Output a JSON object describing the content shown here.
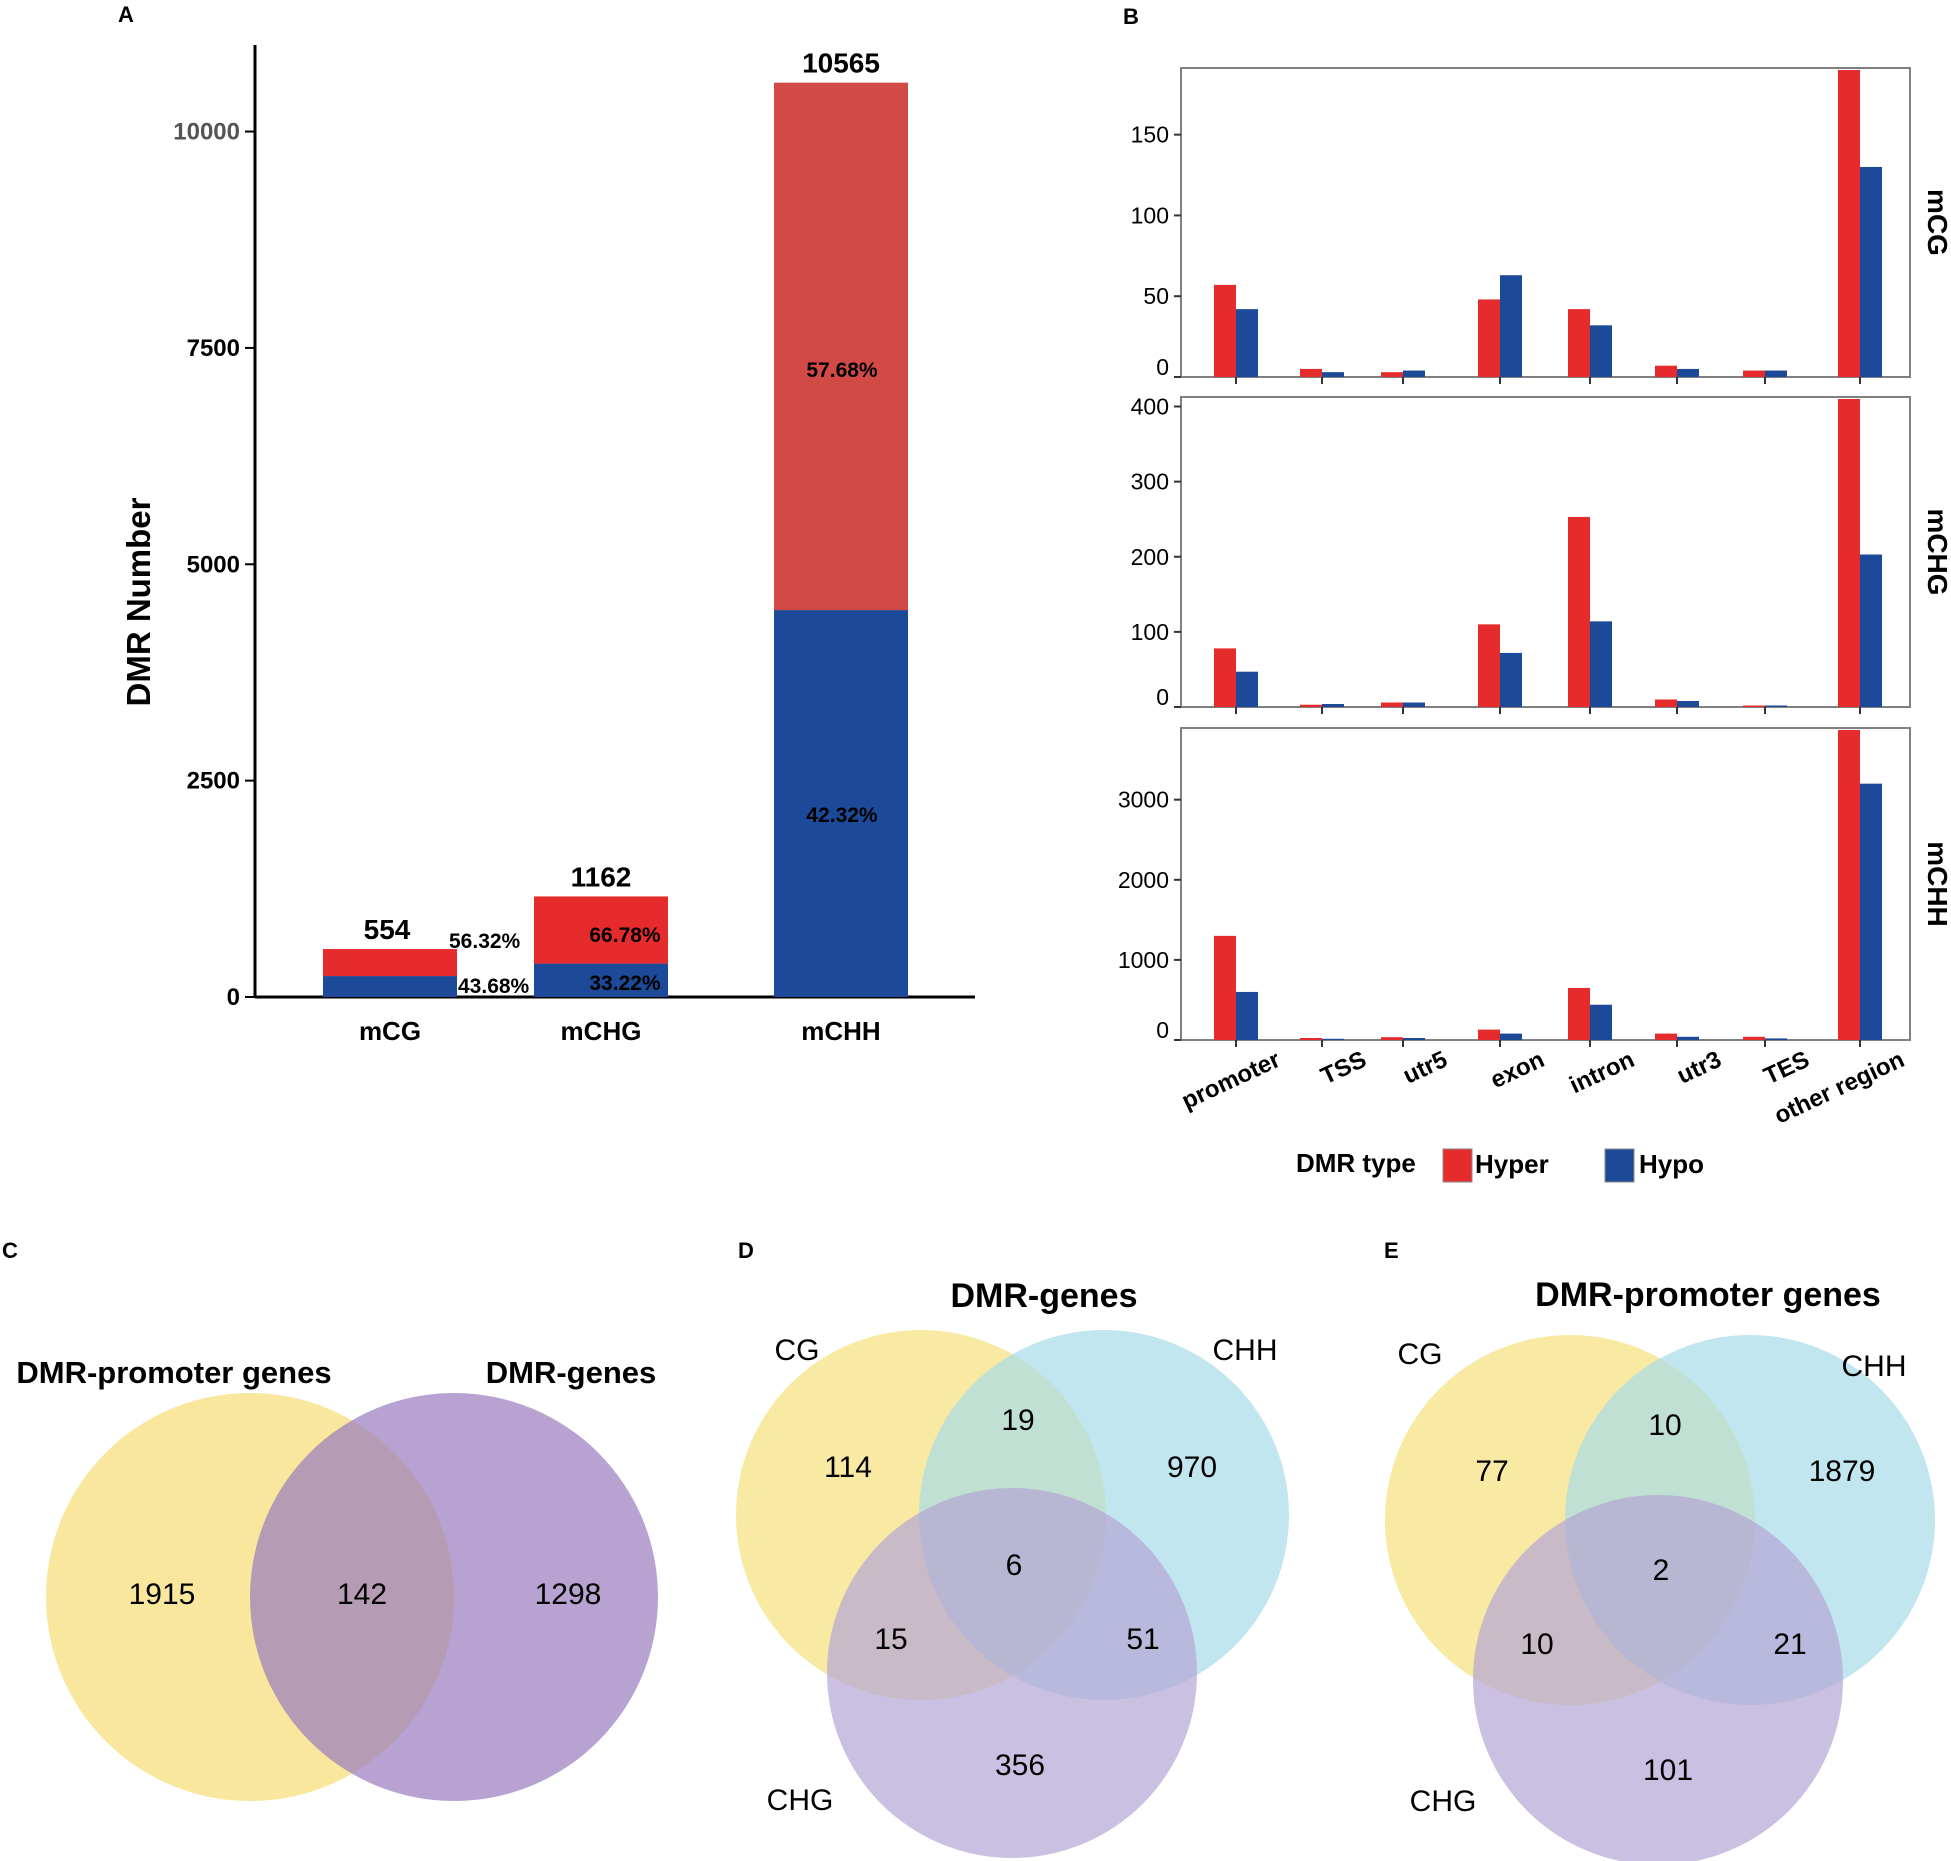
{
  "colors": {
    "hyper": "#e52b2b",
    "hyper_stack": "#d24a46",
    "hypo": "#1c4a99",
    "axis": "#000000",
    "panel_border": "#808080",
    "venn_yellow": "#f5df7c",
    "venn_purple": "#9a7bbd",
    "venn_cyan": "#a8dce8",
    "venn_purple_light": "#b3a5d4"
  },
  "panels": {
    "a": {
      "label": "A"
    },
    "b": {
      "label": "B"
    },
    "c": {
      "label": "C"
    },
    "d": {
      "label": "D"
    },
    "e": {
      "label": "E"
    }
  },
  "chart_data": [
    {
      "id": "A",
      "type": "bar",
      "stacked": true,
      "ylabel": "DMR Number",
      "ylim": [
        0,
        11000
      ],
      "yticks": [
        0,
        2500,
        5000,
        7500,
        10000
      ],
      "ytick_labels": [
        "0",
        "2500",
        "5000",
        "7500",
        "10000"
      ],
      "categories": [
        "mCG",
        "mCHG",
        "mCHH"
      ],
      "totals": [
        554,
        1162,
        10565
      ],
      "total_labels": [
        "554",
        "1162",
        "10565"
      ],
      "series": [
        {
          "name": "Hypo",
          "values": [
            242,
            386,
            4471
          ],
          "pct_labels": [
            "43.68%",
            "33.22%",
            "42.32%"
          ]
        },
        {
          "name": "Hyper",
          "values": [
            312,
            776,
            6094
          ],
          "pct_labels": [
            "56.32%",
            "66.78%",
            "57.68%"
          ]
        }
      ]
    },
    {
      "id": "B",
      "type": "bar",
      "categories": [
        "promoter",
        "TSS",
        "utr5",
        "exon",
        "intron",
        "utr3",
        "TES",
        "other region"
      ],
      "legend": {
        "title": "DMR type",
        "entries": [
          "Hyper",
          "Hypo"
        ],
        "position": "bottom"
      },
      "facets": [
        {
          "name": "mCG",
          "ylim": [
            0,
            190
          ],
          "yticks": [
            0,
            50,
            100,
            150
          ],
          "ytick_labels": [
            "0",
            "50",
            "100",
            "150"
          ],
          "series": [
            {
              "name": "Hyper",
              "values": [
                57,
                5,
                3,
                48,
                42,
                7,
                4,
                190
              ]
            },
            {
              "name": "Hypo",
              "values": [
                42,
                3,
                4,
                63,
                32,
                5,
                4,
                130
              ]
            }
          ]
        },
        {
          "name": "mCHG",
          "ylim": [
            0,
            410
          ],
          "yticks": [
            0,
            100,
            200,
            300,
            400
          ],
          "ytick_labels": [
            "0",
            "100",
            "200",
            "300",
            "400"
          ],
          "series": [
            {
              "name": "Hyper",
              "values": [
                78,
                3,
                6,
                110,
                253,
                10,
                2,
                410
              ]
            },
            {
              "name": "Hypo",
              "values": [
                47,
                4,
                6,
                72,
                114,
                8,
                2,
                203
              ]
            }
          ]
        },
        {
          "name": "mCHH",
          "ylim": [
            0,
            3870
          ],
          "yticks": [
            0,
            1000,
            2000,
            3000
          ],
          "ytick_labels": [
            "0",
            "1000",
            "2000",
            "3000"
          ],
          "series": [
            {
              "name": "Hyper",
              "values": [
                1300,
                25,
                35,
                130,
                650,
                80,
                40,
                3870
              ]
            },
            {
              "name": "Hypo",
              "values": [
                600,
                15,
                25,
                80,
                440,
                40,
                20,
                3200
              ]
            }
          ]
        }
      ]
    },
    {
      "id": "C",
      "type": "venn",
      "sets": [
        "DMR-promoter genes",
        "DMR-genes"
      ],
      "regions": {
        "only_left": 1915,
        "both": 142,
        "only_right": 1298
      }
    },
    {
      "id": "D",
      "type": "venn",
      "title": "DMR-genes",
      "sets": [
        "CG",
        "CHH",
        "CHG"
      ],
      "regions": {
        "cg_only": 114,
        "cg_chh": 19,
        "chh_only": 970,
        "all": 6,
        "cg_chg": 15,
        "chh_chg": 51,
        "chg_only": 356
      }
    },
    {
      "id": "E",
      "type": "venn",
      "title": "DMR-promoter genes",
      "sets": [
        "CG",
        "CHH",
        "CHG"
      ],
      "regions": {
        "cg_only": 77,
        "cg_chh": 10,
        "chh_only": 1879,
        "all": 2,
        "cg_chg": 10,
        "chh_chg": 21,
        "chg_only": 101
      }
    }
  ]
}
